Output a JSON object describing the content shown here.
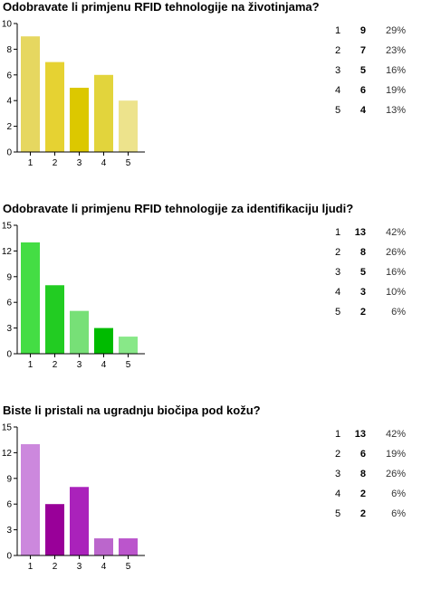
{
  "questions": [
    {
      "title": "Odobravate li primjenu RFID tehnologije na životinjama?",
      "summary": [
        {
          "value": "1",
          "count": "9",
          "percent": "29%"
        },
        {
          "value": "2",
          "count": "7",
          "percent": "23%"
        },
        {
          "value": "3",
          "count": "5",
          "percent": "16%"
        },
        {
          "value": "4",
          "count": "6",
          "percent": "19%"
        },
        {
          "value": "5",
          "count": "4",
          "percent": "13%"
        }
      ]
    },
    {
      "title": "Odobravate li primjenu RFID tehnologije za identifikaciju ljudi?",
      "summary": [
        {
          "value": "1",
          "count": "13",
          "percent": "42%"
        },
        {
          "value": "2",
          "count": "8",
          "percent": "26%"
        },
        {
          "value": "3",
          "count": "5",
          "percent": "16%"
        },
        {
          "value": "4",
          "count": "3",
          "percent": "10%"
        },
        {
          "value": "5",
          "count": "2",
          "percent": "6%"
        }
      ]
    },
    {
      "title": "Biste li pristali na ugradnju biočipa pod kožu?",
      "summary": [
        {
          "value": "1",
          "count": "13",
          "percent": "42%"
        },
        {
          "value": "2",
          "count": "6",
          "percent": "19%"
        },
        {
          "value": "3",
          "count": "8",
          "percent": "26%"
        },
        {
          "value": "4",
          "count": "2",
          "percent": "6%"
        },
        {
          "value": "5",
          "count": "2",
          "percent": "6%"
        }
      ]
    }
  ],
  "chart_data": [
    {
      "type": "bar",
      "title": "Odobravate li primjenu RFID tehnologije na životinjama?",
      "categories": [
        "1",
        "2",
        "3",
        "4",
        "5"
      ],
      "values": [
        9,
        7,
        5,
        6,
        4
      ],
      "ylim": [
        0,
        10
      ],
      "yticks": [
        0,
        2,
        4,
        6,
        8,
        10
      ],
      "grid": false,
      "bar_colors": [
        "#e6d760",
        "#e6d232",
        "#dcc800",
        "#e2d43c",
        "#ede38c"
      ]
    },
    {
      "type": "bar",
      "title": "Odobravate li primjenu RFID tehnologije za identifikaciju ljudi?",
      "categories": [
        "1",
        "2",
        "3",
        "4",
        "5"
      ],
      "values": [
        13,
        8,
        5,
        3,
        2
      ],
      "ylim": [
        0,
        15
      ],
      "yticks": [
        0,
        3,
        6,
        9,
        12,
        15
      ],
      "grid": false,
      "bar_colors": [
        "#44dd44",
        "#22cc22",
        "#77e077",
        "#00bb00",
        "#88e888"
      ]
    },
    {
      "type": "bar",
      "title": "Biste li pristali na ugradnju biočipa pod kožu?",
      "categories": [
        "1",
        "2",
        "3",
        "4",
        "5"
      ],
      "values": [
        13,
        6,
        8,
        2,
        2
      ],
      "ylim": [
        0,
        15
      ],
      "yticks": [
        0,
        3,
        6,
        9,
        12,
        15
      ],
      "grid": false,
      "bar_colors": [
        "#cc88dd",
        "#990099",
        "#aa22bb",
        "#bb66cc",
        "#bb55cc"
      ]
    }
  ]
}
